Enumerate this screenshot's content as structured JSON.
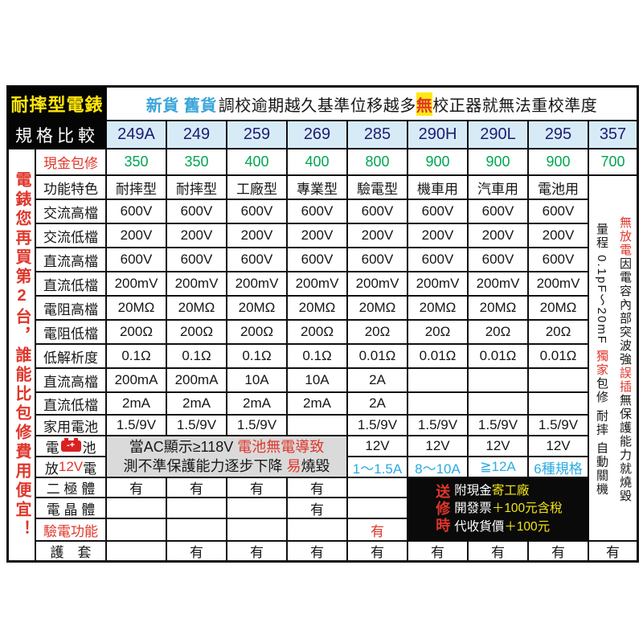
{
  "page": {
    "title_cell": "耐摔型電錶",
    "subtitle_cell": "規格比較"
  },
  "notice": {
    "a": "新貨 舊貨",
    "b": "調校逾期越久基準位移越多",
    "c": "無",
    "d": "校正器就無法重校準度"
  },
  "models": [
    "249A",
    "249",
    "259",
    "269",
    "285",
    "290H",
    "290L",
    "295",
    "357"
  ],
  "sidebar_text": "電錶您再買第2台，誰能比包修費用便宜！",
  "icons": {
    "battery": "-+"
  },
  "colors": {
    "accent_red": "#df362b",
    "price_green": "#00a551",
    "model_navy": "#1e1b6e",
    "header_blue": "#3aa5da",
    "value_cyan": "#2aabe2",
    "highlight_yellow": "#ffe813",
    "model_row_bg": "#d7ebf7",
    "note_grey_bg": "#dadada"
  },
  "rows": [
    {
      "label": "現金包修",
      "lc": "red",
      "vc": "green",
      "vals": [
        "350",
        "350",
        "400",
        "400",
        "800",
        "900",
        "900",
        "900",
        "700"
      ]
    },
    {
      "label": "功能特色",
      "vals": [
        "耐摔型",
        "耐摔型",
        "工廠型",
        "專業型",
        "驗電型",
        "機車用",
        "汽車用",
        "電池用"
      ]
    },
    {
      "label": "交流高檔",
      "vals": [
        "600V",
        "600V",
        "600V",
        "600V",
        "600V",
        "600V",
        "600V",
        "600V"
      ]
    },
    {
      "label": "交流低檔",
      "vals": [
        "200V",
        "200V",
        "200V",
        "200V",
        "200V",
        "200V",
        "200V",
        "200V"
      ]
    },
    {
      "label": "直流高檔",
      "vals": [
        "600V",
        "600V",
        "600V",
        "600V",
        "600V",
        "600V",
        "600V",
        "600V"
      ]
    },
    {
      "label": "直流低檔",
      "vals": [
        "200mV",
        "200mV",
        "200mV",
        "200mV",
        "200mV",
        "200mV",
        "200mV",
        "200mV"
      ]
    },
    {
      "label": "電阻高檔",
      "vals": [
        "20MΩ",
        "20MΩ",
        "20MΩ",
        "20MΩ",
        "20MΩ",
        "20MΩ",
        "20MΩ",
        "20MΩ"
      ]
    },
    {
      "label": "電阻低檔",
      "vals": [
        "200Ω",
        "200Ω",
        "200Ω",
        "200Ω",
        "20Ω",
        "20Ω",
        "20Ω",
        "20Ω"
      ]
    },
    {
      "label": "低解析度",
      "vals": [
        "0.1Ω",
        "0.1Ω",
        "0.1Ω",
        "0.1Ω",
        "0.01Ω",
        "0.01Ω",
        "0.01Ω",
        "0.01Ω"
      ]
    },
    {
      "label": "直流高檔",
      "vals": [
        "200mA",
        "200mA",
        "10A",
        "10A",
        "2A",
        "",
        "",
        ""
      ]
    },
    {
      "label": "直流低檔",
      "vals": [
        "2mA",
        "2mA",
        "2mA",
        "2mA",
        "2A",
        "",
        "",
        ""
      ]
    },
    {
      "label": "家用電池",
      "vals": [
        "1.5/9V",
        "1.5/9V",
        "1.5/9V",
        "",
        "1.5/9V",
        "1.5/9V",
        "1.5/9V",
        "1.5/9V"
      ]
    },
    {
      "label_parts": [
        {
          "t": "電"
        },
        {
          "icon": "battery"
        },
        {
          "t": "池"
        }
      ],
      "offset": 4,
      "vals": [
        "12V",
        "12V",
        "12V",
        "12V"
      ]
    },
    {
      "label_parts": [
        {
          "t": "放"
        },
        {
          "t": "12V",
          "c": "red"
        },
        {
          "t": "電"
        }
      ],
      "offset": 4,
      "vc": "cyan",
      "vals": [
        "1～1.5A",
        "8～10A",
        "≧12A",
        "6種規格"
      ]
    },
    {
      "label": "二 極 體",
      "vals": [
        "有",
        "有",
        "有",
        "有",
        ""
      ]
    },
    {
      "label": "電 晶 體",
      "vals": [
        "",
        "",
        "",
        "有",
        ""
      ]
    },
    {
      "label": "驗電功能",
      "lc": "red",
      "vc": "red",
      "vals": [
        "",
        "",
        "",
        "",
        "有"
      ]
    },
    {
      "label": "護　套",
      "vals": [
        "",
        "有",
        "有",
        "有",
        "有",
        "有",
        "有",
        "有",
        "有"
      ]
    }
  ],
  "battery_note": {
    "line1_black": "當AC顯示≥118V ",
    "line1_red": "電池無電導致",
    "line2_black1": "測不準保護能力逐步下降 ",
    "line2_red": "易",
    "line2_black2": "燒毀"
  },
  "promo": {
    "vertical": "送修時",
    "l1w": "附現金",
    "l1y": "寄工廠",
    "l2w": "開發票",
    "l2y": "＋100元含稅",
    "l3w": "代收貨價",
    "l3y": "＋100元"
  },
  "col357": {
    "r1_red": "無放電",
    "r1_black": "因電容內部突波強",
    "r2_red": "誤插",
    "r2_black": "無保護能力就燒毀",
    "l1_black": "量程 0.1pF～20mF ",
    "l1_red": "獨家",
    "l2_black": "包修 耐摔 自動關機"
  }
}
